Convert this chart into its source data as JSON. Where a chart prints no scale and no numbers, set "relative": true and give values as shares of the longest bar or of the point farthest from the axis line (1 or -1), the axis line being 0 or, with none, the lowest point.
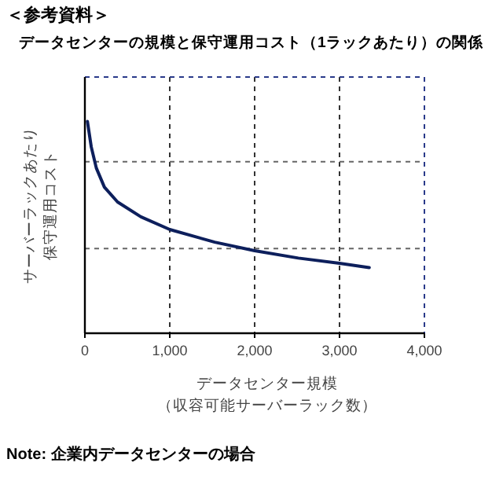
{
  "chart_data": {
    "type": "line",
    "title": "＜参考資料＞",
    "subtitle": "データセンターの規模と保守運用コスト（1ラックあたり）の関係",
    "xlabel": "データセンター規模（収容可能サーバーラック数）",
    "ylabel": "サーバーラックあたり保守運用コスト",
    "relative": true,
    "x": [
      30,
      75,
      135,
      230,
      385,
      660,
      1000,
      1530,
      2000,
      2515,
      3000,
      3350
    ],
    "series": [
      {
        "color": "#0d1f5c",
        "values": [
          1,
          0.88,
          0.78,
          0.69,
          0.62,
          0.55,
          0.49,
          0.43,
          0.39,
          0.355,
          0.33,
          0.31
        ]
      }
    ],
    "xlim": [
      0,
      4000
    ],
    "xticks": [
      {
        "value": 0,
        "label": "0"
      },
      {
        "value": 1000,
        "label": "1,000"
      },
      {
        "value": 2000,
        "label": "2,000"
      },
      {
        "value": 3000,
        "label": "3,000"
      },
      {
        "value": 4000,
        "label": "4,000"
      }
    ],
    "grid": "x",
    "line_style": "solid",
    "ref_lines": [
      {
        "axis": "y",
        "value": 0.4,
        "color": "#666666",
        "line_style": "dashed"
      },
      {
        "axis": "y",
        "value": 0.81,
        "color": "#666666",
        "line_style": "dashed"
      }
    ],
    "annotations": [
      "Note: 企業内データセンターの場合"
    ]
  }
}
